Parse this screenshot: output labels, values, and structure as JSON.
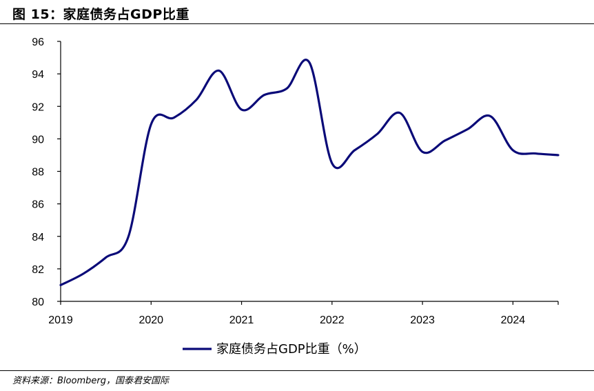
{
  "header": {
    "title": "图 15：家庭债务占GDP比重"
  },
  "source": {
    "text": "资料来源：Bloomberg，国泰君安国际"
  },
  "colors": {
    "series": "#0a0a78",
    "axis": "#000000"
  },
  "chart_data": {
    "type": "line",
    "title": "图 15：家庭债务占GDP比重",
    "xlabel": "",
    "ylabel": "",
    "xlim": [
      2019.0,
      2024.5
    ],
    "ylim": [
      80,
      96
    ],
    "xticks": [
      "2019",
      "2020",
      "2021",
      "2022",
      "2023",
      "2024"
    ],
    "yticks": [
      "80",
      "82",
      "84",
      "86",
      "88",
      "90",
      "92",
      "94",
      "96"
    ],
    "grid": false,
    "legend": "bottom-center",
    "series": [
      {
        "name": "家庭债务占GDP比重（%）",
        "x": [
          2019.0,
          2019.25,
          2019.5,
          2019.75,
          2020.0,
          2020.25,
          2020.5,
          2020.75,
          2021.0,
          2021.25,
          2021.5,
          2021.75,
          2022.0,
          2022.25,
          2022.5,
          2022.75,
          2023.0,
          2023.25,
          2023.5,
          2023.75,
          2024.0,
          2024.25,
          2024.5
        ],
        "y": [
          81.0,
          81.7,
          82.7,
          84.0,
          90.9,
          91.3,
          92.4,
          94.2,
          91.8,
          92.7,
          93.1,
          94.7,
          88.5,
          89.3,
          90.3,
          91.6,
          89.2,
          89.9,
          90.6,
          91.4,
          89.3,
          89.1,
          89.0
        ]
      }
    ]
  }
}
